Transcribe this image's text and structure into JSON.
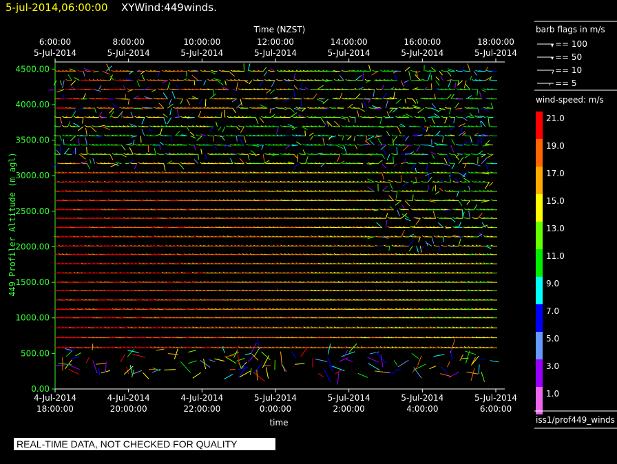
{
  "header": {
    "time": "5-jul-2014,06:00:00",
    "title": "XYWind:449winds."
  },
  "notice": "REAL-TIME DATA, NOT CHECKED FOR QUALITY",
  "sidebar": {
    "barb_title": "barb flags in m/s",
    "barb_items": [
      "== 100",
      "== 50",
      "== 10",
      "== 5"
    ],
    "speed_title": "wind-speed: m/s",
    "source": "iss1/prof449_winds"
  },
  "colors": {
    "background": "#000000",
    "y_axis": "#33ff33",
    "header_time": "#ffff00"
  },
  "chart_data": {
    "type": "wind barb time-height plot",
    "x_top_title": "Time (NZST)",
    "x_top_ticks": [
      {
        "time": "6:00:00",
        "date": "5-Jul-2014"
      },
      {
        "time": "8:00:00",
        "date": "5-Jul-2014"
      },
      {
        "time": "10:00:00",
        "date": "5-Jul-2014"
      },
      {
        "time": "12:00:00",
        "date": "5-Jul-2014"
      },
      {
        "time": "14:00:00",
        "date": "5-Jul-2014"
      },
      {
        "time": "16:00:00",
        "date": "5-Jul-2014"
      },
      {
        "time": "18:00:00",
        "date": "5-Jul-2014"
      }
    ],
    "x_bottom_title": "time",
    "x_bottom_ticks": [
      {
        "date": "4-Jul-2014",
        "time": "18:00:00"
      },
      {
        "date": "4-Jul-2014",
        "time": "20:00:00"
      },
      {
        "date": "4-Jul-2014",
        "time": "22:00:00"
      },
      {
        "date": "5-Jul-2014",
        "time": "0:00:00"
      },
      {
        "date": "5-Jul-2014",
        "time": "2:00:00"
      },
      {
        "date": "5-Jul-2014",
        "time": "4:00:00"
      },
      {
        "date": "5-Jul-2014",
        "time": "6:00:00"
      }
    ],
    "x_range_hours_utc": [
      18,
      30.3
    ],
    "ylabel": "449 Profiler Altitude (m agl)",
    "y_ticks": [
      "0.00",
      "500.00",
      "1000.00",
      "1500.00",
      "2000.00",
      "2500.00",
      "3000.00",
      "3500.00",
      "4000.00",
      "4500.00"
    ],
    "ylim": [
      0,
      4600
    ],
    "level_heights_m": [
      580,
      720,
      860,
      1000,
      1120,
      1250,
      1380,
      1500,
      1630,
      1760,
      1890,
      2010,
      2140,
      2270,
      2400,
      2520,
      2650,
      2780,
      2910,
      3040,
      3170,
      3300,
      3430,
      3560,
      3690,
      3820,
      3950,
      4080,
      4210,
      4340,
      4470
    ],
    "speed_profile": [
      {
        "altitude_m": 600,
        "t_early": 21,
        "t_late": 16
      },
      {
        "altitude_m": 1000,
        "t_early": 21,
        "t_late": 14
      },
      {
        "altitude_m": 1500,
        "t_early": 21,
        "t_late": 14
      },
      {
        "altitude_m": 2000,
        "t_early": 21,
        "t_late": 15
      },
      {
        "altitude_m": 2500,
        "t_early": 21,
        "t_late": 13
      },
      {
        "altitude_m": 3000,
        "t_early": 21,
        "t_late": 12
      },
      {
        "altitude_m": 3500,
        "t_early": 10,
        "t_late": 10
      },
      {
        "altitude_m": 4000,
        "t_early": 21,
        "t_late": 12
      },
      {
        "altitude_m": 4500,
        "t_early": 21,
        "t_late": 8
      }
    ],
    "colorbar": {
      "title": "wind-speed: m/s",
      "entries": [
        {
          "value": "21.0",
          "color": "#ff0000"
        },
        {
          "value": "19.0",
          "color": "#ff6600"
        },
        {
          "value": "17.0",
          "color": "#ffaa00"
        },
        {
          "value": "15.0",
          "color": "#ffff00"
        },
        {
          "value": "13.0",
          "color": "#66ff00"
        },
        {
          "value": "11.0",
          "color": "#00ee00"
        },
        {
          "value": "9.0",
          "color": "#00ffff"
        },
        {
          "value": "7.0",
          "color": "#0000ff"
        },
        {
          "value": "5.0",
          "color": "#6699ff"
        },
        {
          "value": "3.0",
          "color": "#9900ff"
        },
        {
          "value": "1.0",
          "color": "#ee66ee"
        }
      ]
    },
    "grid": false,
    "legend_position": "right"
  }
}
